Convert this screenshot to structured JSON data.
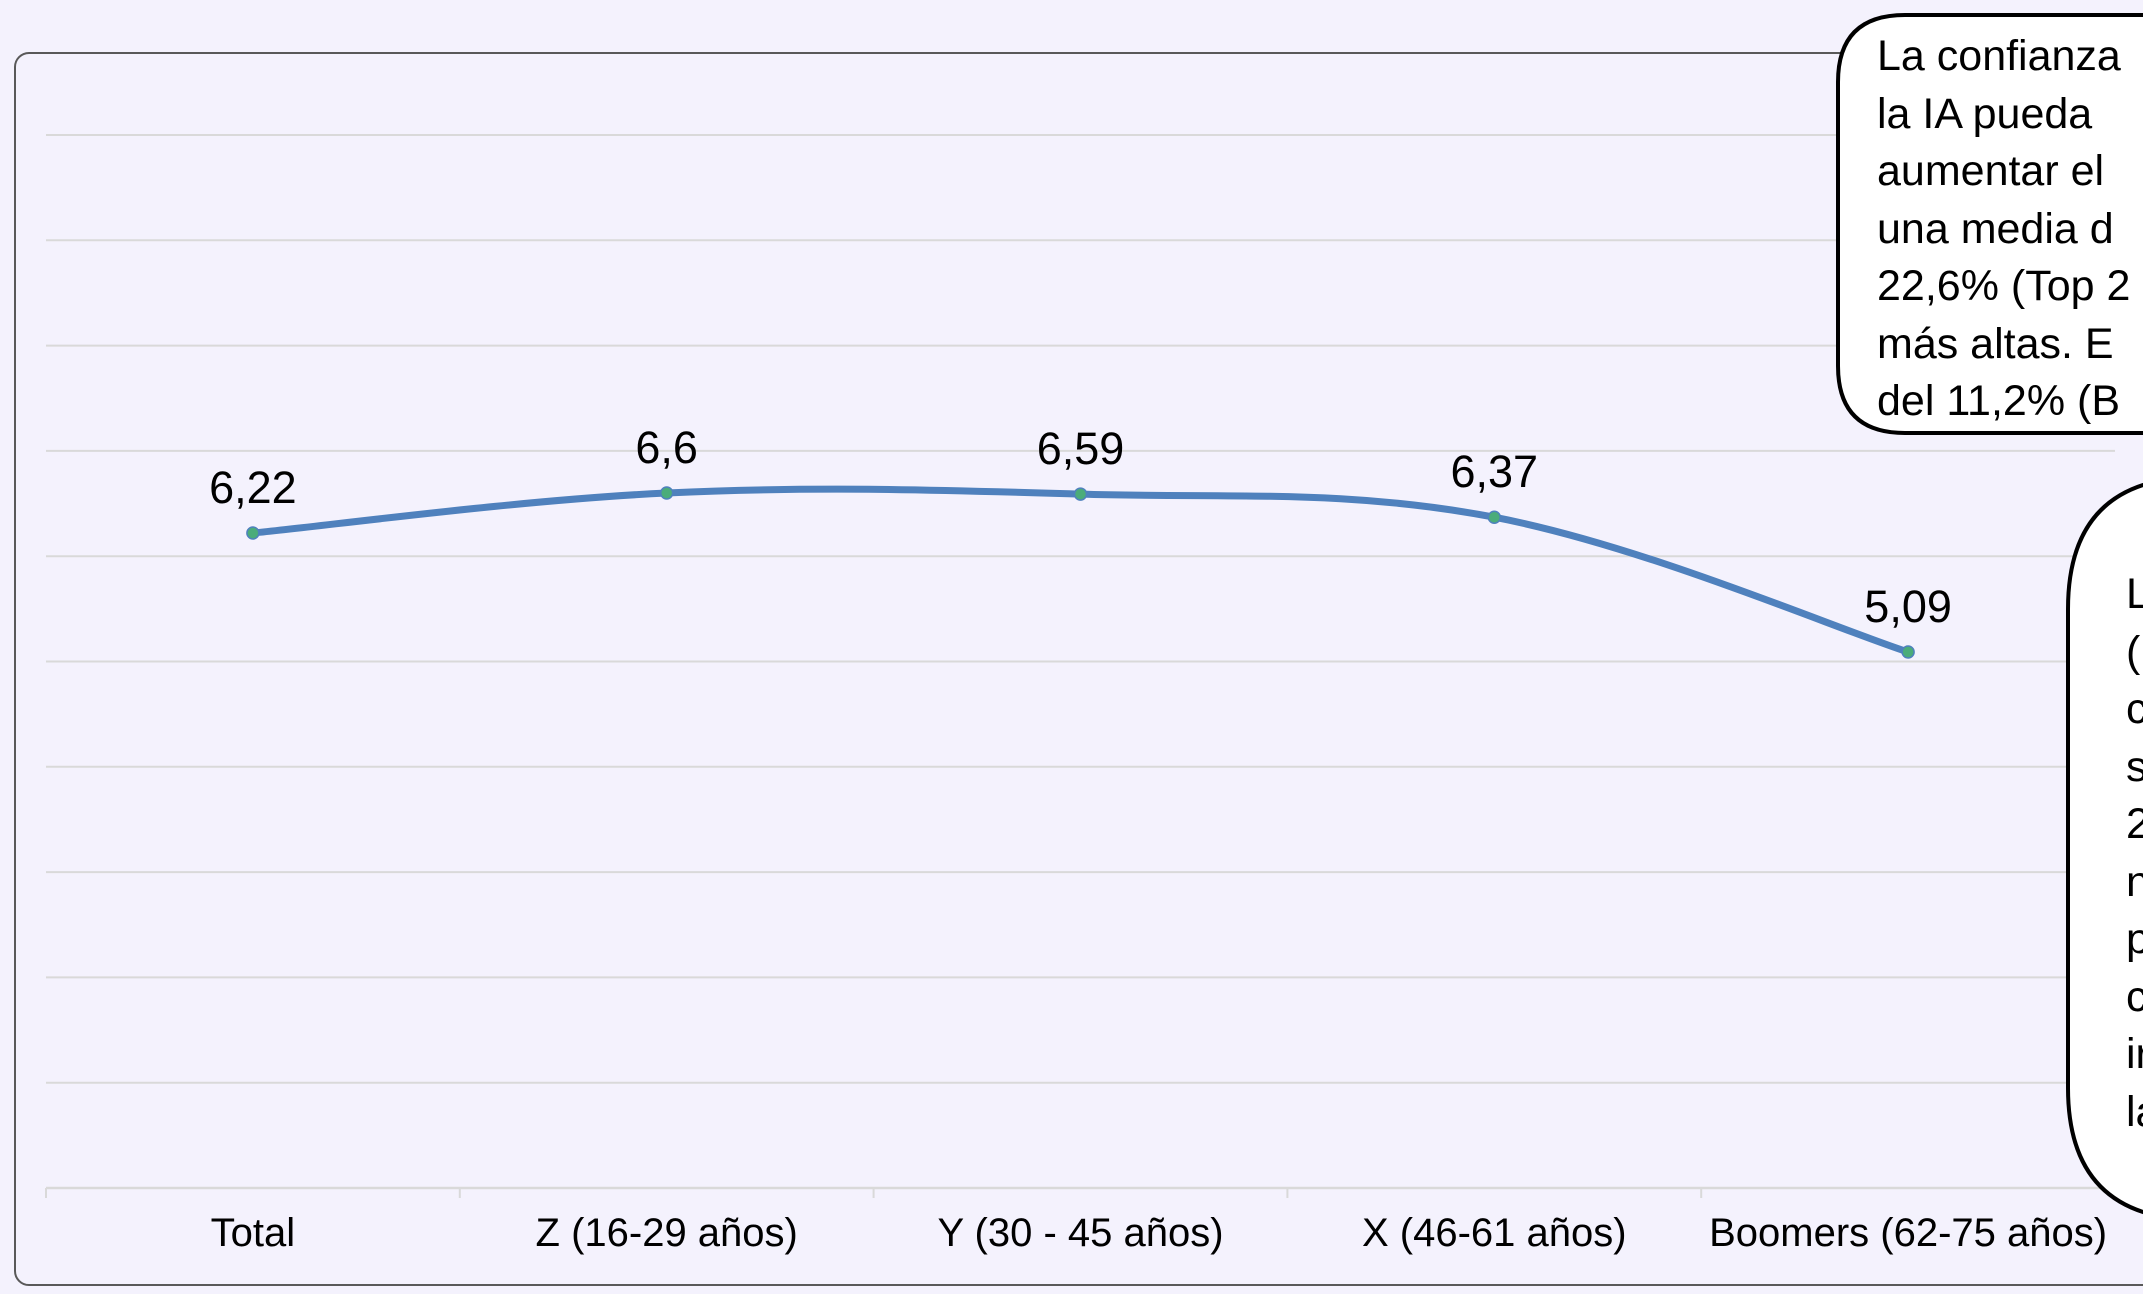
{
  "colors": {
    "background": "#f4f2fd",
    "line": "#4f81bd",
    "marker": "#4bac7a",
    "gridline": "#d9d9d9",
    "frame": "#595959",
    "callout_border": "#000000"
  },
  "chart_data": {
    "type": "line",
    "categories": [
      "Total",
      "Z (16-29 años)",
      "Y (30 - 45 años)",
      "X (46-61 años)",
      "Boomers (62-75 años)"
    ],
    "series": [
      {
        "values": [
          6.22,
          6.6,
          6.59,
          6.37,
          5.09
        ]
      }
    ],
    "data_labels": [
      "6,22",
      "6,6",
      "6,59",
      "6,37",
      "5,09"
    ],
    "ylim": [
      0,
      10
    ],
    "grid": true,
    "smooth": true
  },
  "callouts": [
    {
      "lines": [
        "La confianza",
        "la IA pueda",
        "aumentar el",
        "una media d",
        "22,6% (Top 2",
        "más altas. E",
        "del 11,2% (B"
      ]
    },
    {
      "lines": [
        "L",
        "(",
        "c",
        "s",
        "2",
        "n",
        "p",
        "c",
        "ir",
        "la"
      ]
    }
  ]
}
